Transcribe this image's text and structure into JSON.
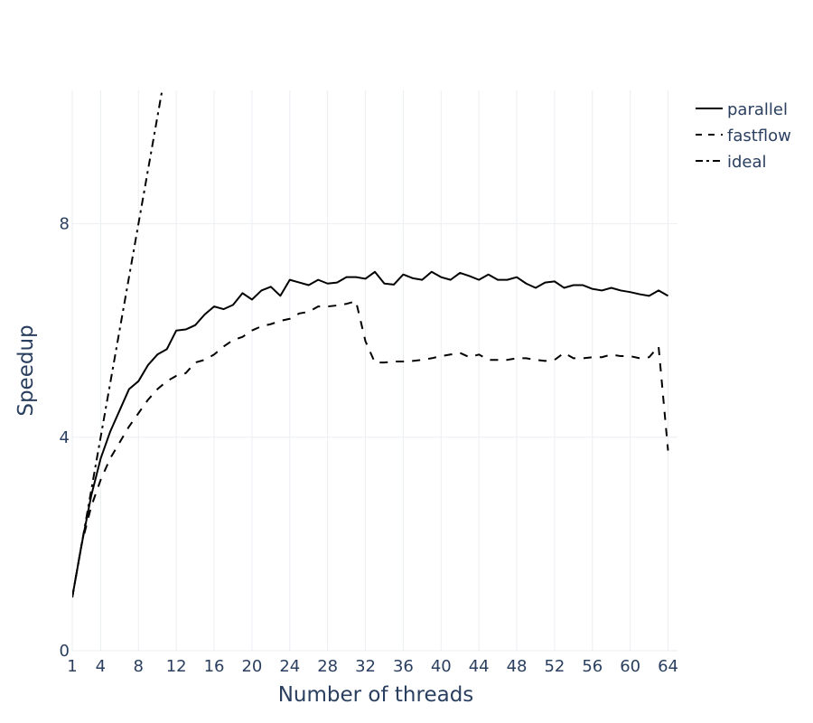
{
  "chart_data": {
    "type": "line",
    "title": "",
    "xlabel": "Number of threads",
    "ylabel": "Speedup",
    "xlim": [
      1,
      65
    ],
    "ylim": [
      0,
      10.5
    ],
    "x_ticks": [
      1,
      4,
      8,
      12,
      16,
      20,
      24,
      28,
      32,
      36,
      40,
      44,
      48,
      52,
      56,
      60,
      64
    ],
    "y_ticks": [
      0,
      4,
      8
    ],
    "grid": true,
    "legend_position": "top-right",
    "series": [
      {
        "name": "parallel",
        "dash": "solid",
        "color": "#000000",
        "x": [
          1,
          2,
          3,
          4,
          5,
          6,
          7,
          8,
          9,
          10,
          11,
          12,
          13,
          14,
          15,
          16,
          17,
          18,
          19,
          20,
          21,
          22,
          23,
          24,
          25,
          26,
          27,
          28,
          29,
          30,
          31,
          32,
          33,
          34,
          35,
          36,
          37,
          38,
          39,
          40,
          41,
          42,
          43,
          44,
          45,
          46,
          47,
          48,
          49,
          50,
          51,
          52,
          53,
          54,
          55,
          56,
          57,
          58,
          59,
          60,
          61,
          62,
          63,
          64
        ],
        "y": [
          1.0,
          2.0,
          2.9,
          3.6,
          4.1,
          4.5,
          4.9,
          5.05,
          5.35,
          5.55,
          5.65,
          6.0,
          6.02,
          6.1,
          6.3,
          6.45,
          6.4,
          6.48,
          6.7,
          6.58,
          6.75,
          6.82,
          6.65,
          6.95,
          6.9,
          6.85,
          6.95,
          6.88,
          6.9,
          7.0,
          7.0,
          6.97,
          7.1,
          6.88,
          6.86,
          7.05,
          6.98,
          6.95,
          7.1,
          7.0,
          6.95,
          7.08,
          7.02,
          6.95,
          7.05,
          6.95,
          6.95,
          7.0,
          6.88,
          6.8,
          6.9,
          6.92,
          6.8,
          6.85,
          6.85,
          6.78,
          6.75,
          6.8,
          6.75,
          6.72,
          6.68,
          6.65,
          6.75,
          6.65
        ]
      },
      {
        "name": "fastflow",
        "dash": "dash",
        "color": "#000000",
        "x": [
          1,
          2,
          3,
          4,
          5,
          6,
          7,
          8,
          9,
          10,
          11,
          12,
          13,
          14,
          15,
          16,
          17,
          18,
          19,
          20,
          21,
          22,
          23,
          24,
          25,
          26,
          27,
          28,
          29,
          30,
          31,
          32,
          33,
          34,
          35,
          36,
          37,
          38,
          39,
          40,
          41,
          42,
          43,
          44,
          45,
          46,
          47,
          48,
          49,
          50,
          51,
          52,
          53,
          54,
          55,
          56,
          57,
          58,
          59,
          60,
          61,
          62,
          63,
          64
        ],
        "y": [
          1.0,
          2.0,
          2.7,
          3.2,
          3.6,
          3.9,
          4.2,
          4.45,
          4.7,
          4.9,
          5.05,
          5.15,
          5.2,
          5.4,
          5.45,
          5.55,
          5.7,
          5.82,
          5.88,
          6.0,
          6.08,
          6.12,
          6.18,
          6.22,
          6.32,
          6.35,
          6.45,
          6.45,
          6.47,
          6.5,
          6.55,
          5.8,
          5.4,
          5.4,
          5.42,
          5.42,
          5.43,
          5.45,
          5.48,
          5.52,
          5.55,
          5.58,
          5.5,
          5.55,
          5.45,
          5.45,
          5.45,
          5.48,
          5.48,
          5.45,
          5.43,
          5.45,
          5.58,
          5.48,
          5.48,
          5.5,
          5.5,
          5.55,
          5.52,
          5.52,
          5.48,
          5.5,
          5.7,
          3.75
        ]
      },
      {
        "name": "ideal",
        "dash": "dashdot",
        "color": "#000000",
        "x": [
          1,
          10.5
        ],
        "y": [
          1,
          10.5
        ]
      }
    ]
  }
}
